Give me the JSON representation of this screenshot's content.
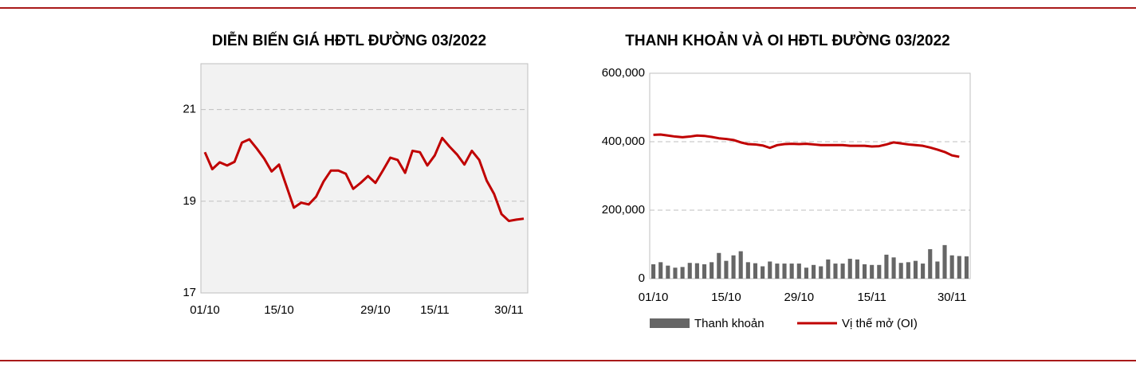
{
  "chart_data": [
    {
      "type": "line",
      "title": "DIỄN BIẾN GIÁ HĐTL ĐƯỜNG 03/2022",
      "categories": [
        "01/10",
        null,
        null,
        null,
        null,
        null,
        null,
        null,
        null,
        null,
        "15/10",
        null,
        null,
        null,
        null,
        null,
        null,
        null,
        null,
        null,
        null,
        null,
        null,
        "29/10",
        null,
        null,
        null,
        null,
        null,
        null,
        null,
        "15/11",
        null,
        null,
        null,
        null,
        null,
        null,
        null,
        null,
        null,
        "30/11",
        null,
        null
      ],
      "values": [
        20.07,
        19.7,
        19.85,
        19.78,
        19.86,
        20.28,
        20.35,
        20.15,
        19.93,
        19.65,
        19.8,
        19.33,
        18.86,
        18.97,
        18.93,
        19.1,
        19.43,
        19.67,
        19.67,
        19.6,
        19.27,
        19.4,
        19.55,
        19.4,
        19.67,
        19.95,
        19.9,
        19.62,
        20.1,
        20.07,
        19.78,
        20.0,
        20.38,
        20.19,
        20.02,
        19.8,
        20.1,
        19.9,
        19.45,
        19.16,
        18.72,
        18.57,
        18.6,
        18.62
      ],
      "color": "#c00000",
      "ylim": [
        17,
        22
      ],
      "yticks": [
        17,
        19,
        21
      ],
      "grid": true
    },
    {
      "type": "combo",
      "title": "THANH KHOẢN VÀ OI HĐTL ĐƯỜNG 03/2022",
      "categories": [
        "01/10",
        null,
        null,
        null,
        null,
        null,
        null,
        null,
        null,
        null,
        "15/10",
        null,
        null,
        null,
        null,
        null,
        null,
        null,
        null,
        null,
        "29/10",
        null,
        null,
        null,
        null,
        null,
        null,
        null,
        null,
        null,
        "15/11",
        null,
        null,
        null,
        null,
        null,
        null,
        null,
        null,
        null,
        null,
        "30/11",
        null,
        null
      ],
      "series": [
        {
          "name": "Thanh khoản",
          "type": "bar",
          "color": "#666666",
          "values": [
            42000,
            48000,
            38000,
            32000,
            34000,
            46000,
            45000,
            42000,
            48000,
            75000,
            52000,
            68000,
            80000,
            48000,
            45000,
            36000,
            50000,
            44000,
            44000,
            44000,
            44000,
            32000,
            40000,
            36000,
            56000,
            44000,
            44000,
            58000,
            56000,
            42000,
            40000,
            40000,
            70000,
            62000,
            46000,
            48000,
            52000,
            44000,
            86000,
            50000,
            98000,
            68000,
            66000,
            65000
          ]
        },
        {
          "name": "Vị thế mở (OI)",
          "type": "line",
          "color": "#c00000",
          "values": [
            420000,
            421000,
            418000,
            415000,
            413000,
            415000,
            418000,
            417000,
            414000,
            410000,
            408000,
            405000,
            398000,
            393000,
            392000,
            389000,
            382000,
            390000,
            393000,
            394000,
            393000,
            394000,
            392000,
            390000,
            390000,
            390000,
            390000,
            388000,
            388000,
            388000,
            386000,
            387000,
            392000,
            398000,
            395000,
            392000,
            390000,
            388000,
            383000,
            377000,
            370000,
            360000,
            356000,
            null
          ]
        }
      ],
      "ylim": [
        0,
        600000
      ],
      "yticks": [
        0,
        {
          "value": 200000,
          "label": "200,000"
        },
        {
          "value": 400000,
          "label": "400,000"
        },
        {
          "value": 600000,
          "label": "600,000"
        }
      ],
      "grid": true,
      "legend": "bottom"
    }
  ]
}
